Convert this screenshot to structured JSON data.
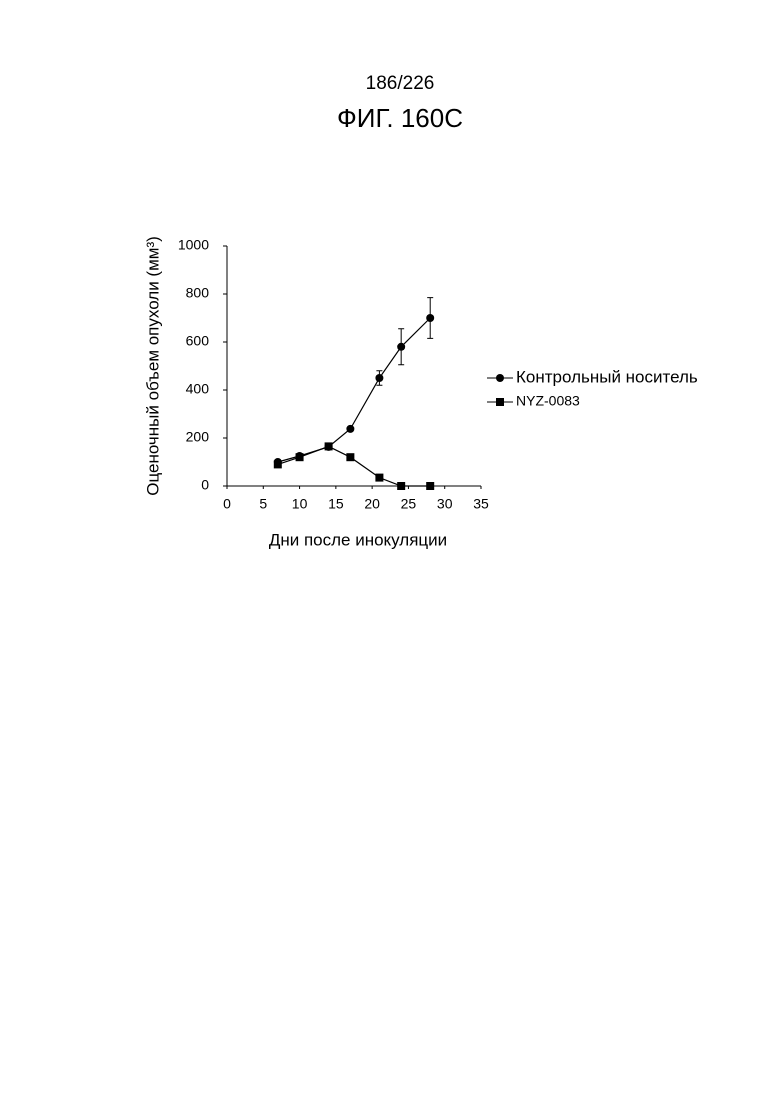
{
  "page_number": "186/226",
  "figure_title": "ФИГ. 160С",
  "chart_data": {
    "type": "line",
    "x_label": "Дни после инокуляции",
    "y_label": "Оценочный объем опухоли (мм³)",
    "xlim": [
      0,
      35
    ],
    "xticks": [
      0,
      5,
      10,
      15,
      20,
      25,
      30,
      35
    ],
    "ylim": [
      0,
      1000
    ],
    "yticks": [
      0,
      200,
      400,
      600,
      800,
      1000
    ],
    "grid": false,
    "legend": "right",
    "x": [
      7,
      10,
      14,
      17,
      21,
      24,
      28
    ],
    "series": [
      {
        "name": "Контрольный носитель",
        "color": "#000000",
        "marker": "circle",
        "values": [
          100,
          125,
          163,
          238,
          450,
          580,
          700
        ],
        "errors": [
          null,
          null,
          null,
          null,
          30,
          75,
          85
        ]
      },
      {
        "name": "NYZ-0083",
        "color": "#000000",
        "marker": "square",
        "values": [
          90,
          120,
          165,
          120,
          35,
          0,
          0
        ]
      }
    ]
  }
}
